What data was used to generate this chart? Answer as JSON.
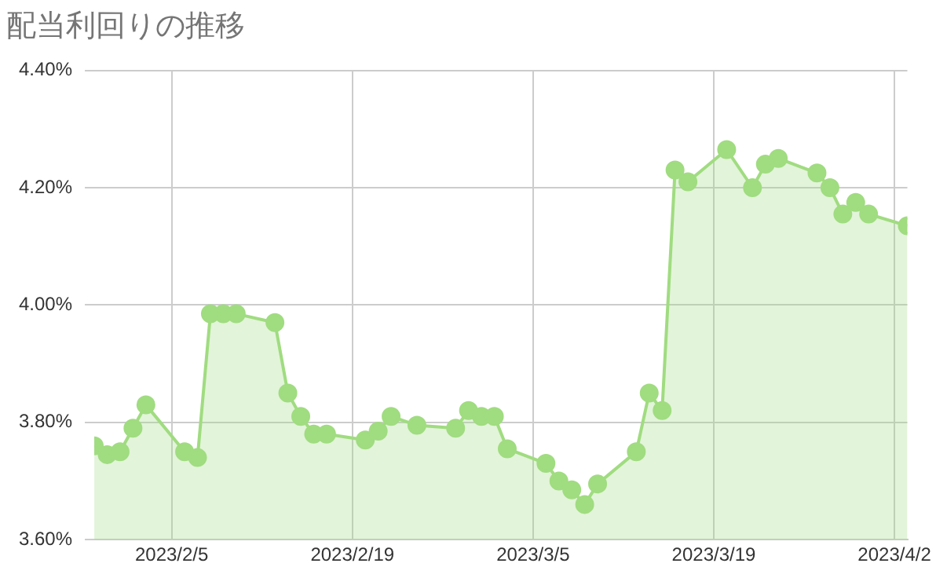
{
  "chart_data": {
    "type": "area",
    "title": "配当利回りの推移",
    "x": [
      "2023-01-30",
      "2023-01-31",
      "2023-02-01",
      "2023-02-02",
      "2023-02-03",
      "2023-02-06",
      "2023-02-07",
      "2023-02-08",
      "2023-02-09",
      "2023-02-10",
      "2023-02-13",
      "2023-02-14",
      "2023-02-15",
      "2023-02-16",
      "2023-02-17",
      "2023-02-20",
      "2023-02-21",
      "2023-02-22",
      "2023-02-24",
      "2023-02-27",
      "2023-02-28",
      "2023-03-01",
      "2023-03-02",
      "2023-03-03",
      "2023-03-06",
      "2023-03-07",
      "2023-03-08",
      "2023-03-09",
      "2023-03-10",
      "2023-03-13",
      "2023-03-14",
      "2023-03-15",
      "2023-03-16",
      "2023-03-17",
      "2023-03-20",
      "2023-03-22",
      "2023-03-23",
      "2023-03-24",
      "2023-03-27",
      "2023-03-28",
      "2023-03-29",
      "2023-03-30",
      "2023-03-31",
      "2023-04-03"
    ],
    "series": [
      {
        "color": "#a0dc80",
        "values": [
          3.76,
          3.745,
          3.75,
          3.79,
          3.83,
          3.75,
          3.74,
          3.985,
          3.985,
          3.985,
          3.97,
          3.85,
          3.81,
          3.78,
          3.78,
          3.77,
          3.785,
          3.81,
          3.795,
          3.79,
          3.82,
          3.81,
          3.81,
          3.755,
          3.73,
          3.7,
          3.685,
          3.66,
          3.695,
          3.75,
          3.85,
          3.82,
          4.23,
          4.21,
          4.265,
          4.2,
          4.24,
          4.25,
          4.225,
          4.2,
          4.155,
          4.175,
          4.155,
          4.135
        ]
      }
    ],
    "xlim": [
      "2023-01-30",
      "2023-04-03"
    ],
    "xticks": [
      {
        "value": "2023-02-05",
        "label": "2023/2/5"
      },
      {
        "value": "2023-02-19",
        "label": "2023/2/19"
      },
      {
        "value": "2023-03-05",
        "label": "2023/3/5"
      },
      {
        "value": "2023-03-19",
        "label": "2023/3/19"
      },
      {
        "value": "2023-04-02",
        "label": "2023/4/2"
      }
    ],
    "ylim": [
      3.6,
      4.4
    ],
    "yticks": [
      {
        "value": 3.6,
        "label": "3.60%"
      },
      {
        "value": 3.8,
        "label": "3.80%"
      },
      {
        "value": 4.0,
        "label": "4.00%"
      },
      {
        "value": 4.2,
        "label": "4.20%"
      },
      {
        "value": 4.4,
        "label": "4.40%"
      }
    ],
    "grid": true,
    "legend": false,
    "marker": "circle",
    "line_style": "solid"
  }
}
